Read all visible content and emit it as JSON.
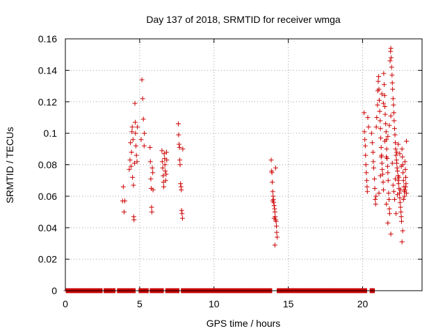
{
  "chart_data": {
    "type": "scatter",
    "title": "Day 137 of 2018, SRMTID for receiver wmga",
    "xlabel": "GPS time / hours",
    "ylabel": "SRMTID / TECUs",
    "xlim": [
      0,
      24
    ],
    "ylim": [
      0,
      0.16
    ],
    "xticks": [
      0,
      5,
      10,
      15,
      20
    ],
    "xtick_labels": [
      "0",
      "5",
      "10",
      "15",
      "20"
    ],
    "yticks": [
      0,
      0.02,
      0.04,
      0.06,
      0.08,
      0.1,
      0.12,
      0.14,
      0.16
    ],
    "ytick_labels": [
      "0",
      "0.02",
      "0.04",
      "0.06",
      "0.08",
      "0.1",
      "0.12",
      "0.14",
      "0.16"
    ],
    "grid": true,
    "marker": "+",
    "color": "#cc0000",
    "series": [
      {
        "name": "SRMTID",
        "points": [
          [
            3.85,
            0.057
          ],
          [
            3.9,
            0.066
          ],
          [
            3.95,
            0.05
          ],
          [
            4.0,
            0.057
          ],
          [
            4.3,
            0.077
          ],
          [
            4.35,
            0.083
          ],
          [
            4.38,
            0.094
          ],
          [
            4.42,
            0.079
          ],
          [
            4.45,
            0.088
          ],
          [
            4.48,
            0.101
          ],
          [
            4.5,
            0.104
          ],
          [
            4.52,
            0.072
          ],
          [
            4.55,
            0.096
          ],
          [
            4.58,
            0.067
          ],
          [
            4.6,
            0.047
          ],
          [
            4.62,
            0.045
          ],
          [
            4.65,
            0.081
          ],
          [
            4.68,
            0.119
          ],
          [
            4.7,
            0.107
          ],
          [
            4.72,
            0.1
          ],
          [
            4.75,
            0.092
          ],
          [
            4.78,
            0.086
          ],
          [
            4.82,
            0.082
          ],
          [
            4.85,
            0.104
          ],
          [
            5.1,
            0.096
          ],
          [
            5.15,
            0.134
          ],
          [
            5.2,
            0.122
          ],
          [
            5.25,
            0.109
          ],
          [
            5.3,
            0.092
          ],
          [
            5.32,
            0.1
          ],
          [
            5.7,
            0.091
          ],
          [
            5.72,
            0.082
          ],
          [
            5.75,
            0.071
          ],
          [
            5.78,
            0.065
          ],
          [
            5.8,
            0.053
          ],
          [
            5.82,
            0.05
          ],
          [
            5.85,
            0.078
          ],
          [
            5.88,
            0.075
          ],
          [
            5.9,
            0.064
          ],
          [
            6.5,
            0.089
          ],
          [
            6.52,
            0.082
          ],
          [
            6.55,
            0.078
          ],
          [
            6.58,
            0.073
          ],
          [
            6.6,
            0.069
          ],
          [
            6.62,
            0.066
          ],
          [
            6.65,
            0.087
          ],
          [
            6.68,
            0.084
          ],
          [
            6.7,
            0.08
          ],
          [
            6.72,
            0.076
          ],
          [
            6.75,
            0.07
          ],
          [
            6.78,
            0.074
          ],
          [
            6.8,
            0.088
          ],
          [
            6.82,
            0.083
          ],
          [
            7.6,
            0.106
          ],
          [
            7.62,
            0.099
          ],
          [
            7.65,
            0.093
          ],
          [
            7.68,
            0.091
          ],
          [
            7.7,
            0.083
          ],
          [
            7.72,
            0.08
          ],
          [
            7.75,
            0.068
          ],
          [
            7.78,
            0.066
          ],
          [
            7.8,
            0.064
          ],
          [
            7.82,
            0.051
          ],
          [
            7.85,
            0.049
          ],
          [
            7.88,
            0.046
          ],
          [
            7.9,
            0.09
          ],
          [
            13.85,
            0.083
          ],
          [
            13.88,
            0.076
          ],
          [
            13.9,
            0.075
          ],
          [
            13.92,
            0.069
          ],
          [
            13.95,
            0.063
          ],
          [
            13.98,
            0.06
          ],
          [
            14.0,
            0.058
          ],
          [
            14.02,
            0.056
          ],
          [
            14.05,
            0.054
          ],
          [
            14.08,
            0.052
          ],
          [
            14.1,
            0.05
          ],
          [
            14.12,
            0.047
          ],
          [
            14.15,
            0.045
          ],
          [
            14.18,
            0.044
          ],
          [
            14.2,
            0.041
          ],
          [
            14.22,
            0.037
          ],
          [
            14.25,
            0.034
          ],
          [
            14.1,
            0.029
          ],
          [
            14.15,
            0.078
          ],
          [
            13.95,
            0.057
          ],
          [
            14.05,
            0.046
          ],
          [
            20.1,
            0.113
          ],
          [
            20.12,
            0.101
          ],
          [
            20.15,
            0.096
          ],
          [
            20.18,
            0.092
          ],
          [
            20.2,
            0.086
          ],
          [
            20.22,
            0.08
          ],
          [
            20.25,
            0.075
          ],
          [
            20.28,
            0.07
          ],
          [
            20.3,
            0.066
          ],
          [
            20.32,
            0.063
          ],
          [
            20.35,
            0.11
          ],
          [
            20.4,
            0.104
          ],
          [
            20.6,
            0.1
          ],
          [
            20.65,
            0.094
          ],
          [
            20.7,
            0.088
          ],
          [
            20.72,
            0.082
          ],
          [
            20.75,
            0.078
          ],
          [
            20.8,
            0.071
          ],
          [
            20.82,
            0.065
          ],
          [
            20.85,
            0.058
          ],
          [
            20.88,
            0.055
          ],
          [
            20.9,
            0.06
          ],
          [
            20.92,
            0.104
          ],
          [
            20.95,
            0.11
          ],
          [
            21.0,
            0.118
          ],
          [
            21.02,
            0.127
          ],
          [
            21.05,
            0.133
          ],
          [
            21.08,
            0.136
          ],
          [
            21.1,
            0.128
          ],
          [
            21.12,
            0.121
          ],
          [
            21.15,
            0.114
          ],
          [
            21.18,
            0.108
          ],
          [
            21.2,
            0.103
          ],
          [
            21.22,
            0.097
          ],
          [
            21.25,
            0.091
          ],
          [
            21.28,
            0.086
          ],
          [
            21.3,
            0.081
          ],
          [
            21.32,
            0.077
          ],
          [
            21.35,
            0.074
          ],
          [
            21.38,
            0.069
          ],
          [
            21.4,
            0.064
          ],
          [
            21.42,
            0.138
          ],
          [
            21.45,
            0.131
          ],
          [
            21.48,
            0.124
          ],
          [
            21.5,
            0.117
          ],
          [
            21.52,
            0.112
          ],
          [
            21.55,
            0.106
          ],
          [
            21.58,
            0.101
          ],
          [
            21.6,
            0.096
          ],
          [
            21.62,
            0.09
          ],
          [
            21.65,
            0.084
          ],
          [
            21.68,
            0.079
          ],
          [
            21.7,
            0.075
          ],
          [
            21.72,
            0.07
          ],
          [
            21.75,
            0.062
          ],
          [
            21.78,
            0.058
          ],
          [
            21.8,
            0.052
          ],
          [
            21.82,
            0.049
          ],
          [
            21.85,
            0.146
          ],
          [
            21.88,
            0.152
          ],
          [
            21.9,
            0.154
          ],
          [
            21.92,
            0.148
          ],
          [
            21.95,
            0.142
          ],
          [
            21.98,
            0.137
          ],
          [
            22.0,
            0.132
          ],
          [
            22.02,
            0.128
          ],
          [
            22.05,
            0.122
          ],
          [
            22.08,
            0.118
          ],
          [
            22.1,
            0.113
          ],
          [
            22.12,
            0.108
          ],
          [
            22.15,
            0.103
          ],
          [
            22.18,
            0.099
          ],
          [
            22.2,
            0.094
          ],
          [
            22.22,
            0.09
          ],
          [
            22.25,
            0.086
          ],
          [
            22.28,
            0.083
          ],
          [
            22.3,
            0.081
          ],
          [
            22.32,
            0.078
          ],
          [
            22.35,
            0.076
          ],
          [
            22.38,
            0.073
          ],
          [
            22.4,
            0.07
          ],
          [
            22.42,
            0.068
          ],
          [
            22.45,
            0.065
          ],
          [
            22.48,
            0.062
          ],
          [
            22.5,
            0.059
          ],
          [
            22.52,
            0.056
          ],
          [
            22.55,
            0.053
          ],
          [
            22.58,
            0.05
          ],
          [
            22.6,
            0.047
          ],
          [
            22.62,
            0.044
          ],
          [
            22.65,
            0.09
          ],
          [
            22.68,
            0.085
          ],
          [
            22.7,
            0.08
          ],
          [
            22.72,
            0.075
          ],
          [
            22.75,
            0.07
          ],
          [
            22.78,
            0.066
          ],
          [
            22.8,
            0.063
          ],
          [
            22.82,
            0.06
          ],
          [
            22.85,
            0.082
          ],
          [
            22.88,
            0.077
          ],
          [
            22.9,
            0.072
          ],
          [
            22.92,
            0.068
          ],
          [
            22.95,
            0.095
          ],
          [
            22.7,
            0.038
          ],
          [
            22.65,
            0.031
          ],
          [
            21.6,
            0.055
          ],
          [
            21.7,
            0.043
          ],
          [
            21.9,
            0.036
          ],
          [
            22.1,
            0.063
          ],
          [
            22.2,
            0.071
          ],
          [
            22.3,
            0.088
          ],
          [
            22.4,
            0.093
          ],
          [
            22.5,
            0.087
          ],
          [
            22.6,
            0.079
          ],
          [
            21.3,
            0.125
          ],
          [
            21.4,
            0.119
          ],
          [
            21.5,
            0.095
          ],
          [
            21.6,
            0.085
          ],
          [
            21.7,
            0.098
          ],
          [
            21.8,
            0.105
          ],
          [
            21.9,
            0.111
          ],
          [
            22.0,
            0.081
          ],
          [
            22.05,
            0.067
          ],
          [
            22.15,
            0.058
          ],
          [
            22.25,
            0.049
          ],
          [
            22.35,
            0.061
          ],
          [
            22.45,
            0.072
          ],
          [
            22.55,
            0.064
          ],
          [
            22.75,
            0.058
          ],
          [
            22.85,
            0.064
          ],
          [
            22.9,
            0.066
          ],
          [
            22.95,
            0.062
          ],
          [
            21.1,
            0.062
          ],
          [
            21.2,
            0.073
          ],
          [
            21.25,
            0.085
          ]
        ],
        "zero_runs": [
          [
            0.05,
            2.5
          ],
          [
            2.6,
            3.35
          ],
          [
            3.5,
            4.7
          ],
          [
            4.95,
            5.6
          ],
          [
            5.7,
            6.6
          ],
          [
            6.75,
            7.65
          ],
          [
            7.8,
            13.9
          ],
          [
            14.25,
            20.3
          ],
          [
            20.5,
            20.8
          ]
        ]
      }
    ]
  }
}
